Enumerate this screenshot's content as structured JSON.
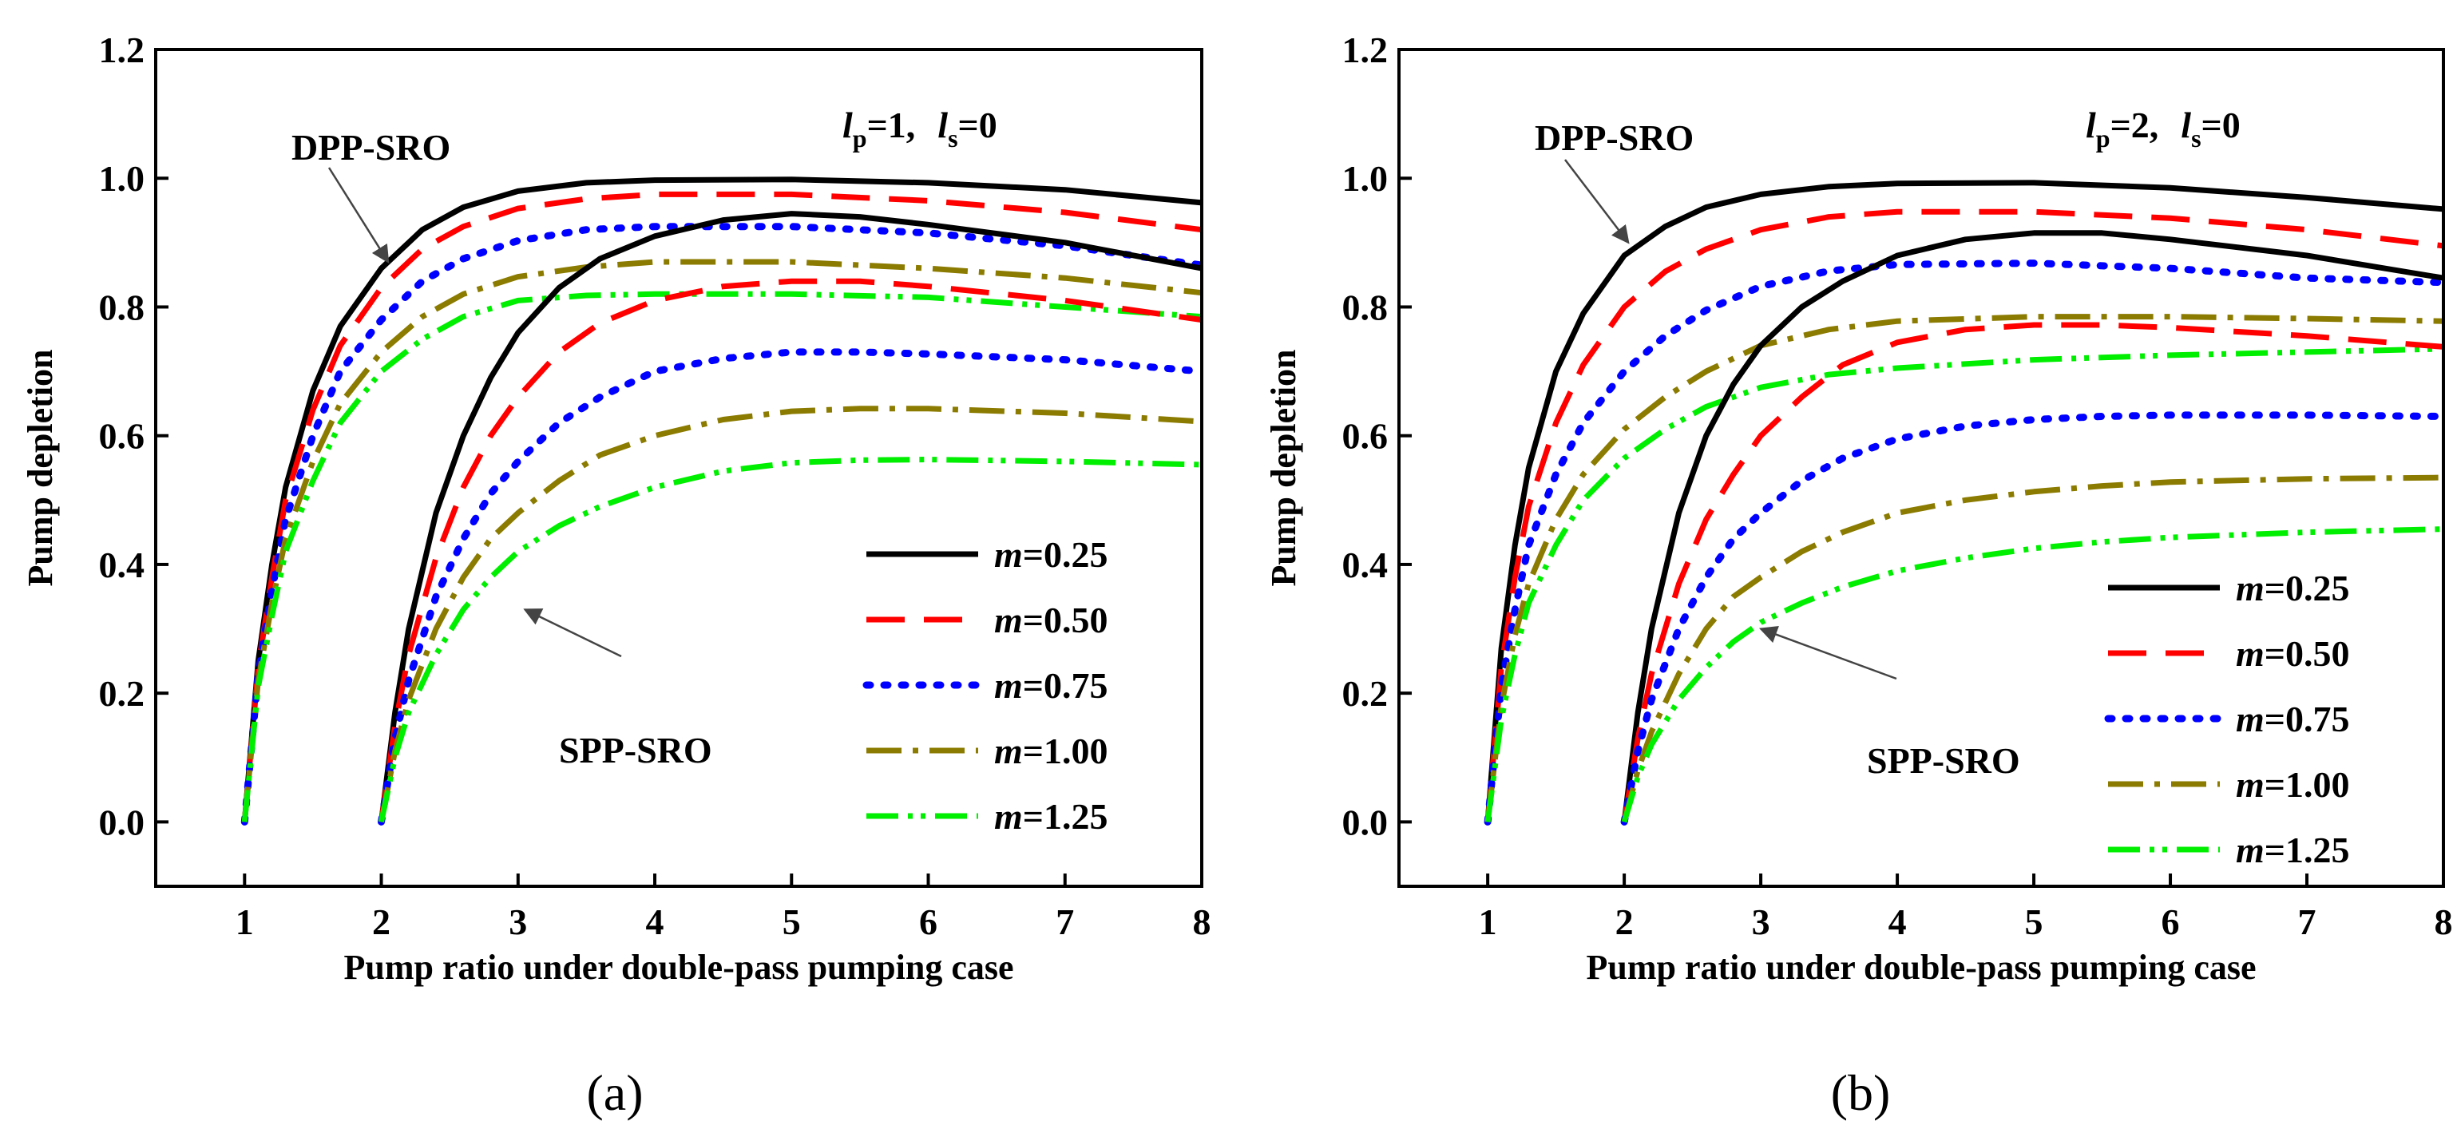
{
  "chart_data": [
    {
      "type": "line",
      "caption": "(a)",
      "xlabel": "Pump ratio under double-pass pumping case",
      "ylabel": "Pump depletion",
      "xlim": [
        0.35,
        8
      ],
      "ylim": [
        -0.1,
        1.2
      ],
      "xticks": [
        "1",
        "2",
        "3",
        "4",
        "5",
        "6",
        "7",
        "8"
      ],
      "yticks": [
        "0.0",
        "0.2",
        "0.4",
        "0.6",
        "0.8",
        "1.0",
        "1.2"
      ],
      "params": {
        "lp_letter": "l",
        "lp_sub": "p",
        "lp_val": "=1,",
        "ls_letter": "l",
        "ls_sub": "s",
        "ls_val": "=0"
      },
      "annotations": [
        {
          "text": "DPP-SRO",
          "points_to": [
            2.05,
            0.87
          ]
        },
        {
          "text": "SPP-SRO",
          "points_to": [
            3.05,
            0.33
          ]
        }
      ],
      "legend_labels": [
        {
          "var": "m",
          "val": "=0.25"
        },
        {
          "var": "m",
          "val": "=0.50"
        },
        {
          "var": "m",
          "val": "=0.75"
        },
        {
          "var": "m",
          "val": "=1.00"
        },
        {
          "var": "m",
          "val": "=1.25"
        }
      ],
      "series": [
        {
          "name": "DPP m=0.25",
          "group": "DPP",
          "style": 0,
          "color": "#000000",
          "x": [
            1,
            1.1,
            1.2,
            1.3,
            1.5,
            1.7,
            2,
            2.3,
            2.6,
            3,
            3.5,
            4,
            5,
            6,
            7,
            8
          ],
          "y": [
            0,
            0.25,
            0.4,
            0.52,
            0.67,
            0.77,
            0.86,
            0.92,
            0.955,
            0.98,
            0.993,
            0.997,
            0.998,
            0.993,
            0.982,
            0.962
          ]
        },
        {
          "name": "DPP m=0.50",
          "group": "DPP",
          "style": 1,
          "color": "#ff0000",
          "x": [
            1,
            1.1,
            1.2,
            1.3,
            1.5,
            1.7,
            2,
            2.3,
            2.6,
            3,
            3.5,
            4,
            5,
            6,
            7,
            8
          ],
          "y": [
            0,
            0.24,
            0.38,
            0.5,
            0.64,
            0.74,
            0.83,
            0.89,
            0.925,
            0.953,
            0.968,
            0.975,
            0.975,
            0.965,
            0.947,
            0.92
          ]
        },
        {
          "name": "DPP m=0.75",
          "group": "DPP",
          "style": 2,
          "color": "#0000ff",
          "x": [
            1,
            1.1,
            1.2,
            1.3,
            1.5,
            1.7,
            2,
            2.3,
            2.6,
            3,
            3.5,
            4,
            5,
            6,
            7,
            8
          ],
          "y": [
            0,
            0.23,
            0.36,
            0.47,
            0.6,
            0.7,
            0.78,
            0.84,
            0.875,
            0.903,
            0.92,
            0.925,
            0.925,
            0.915,
            0.895,
            0.865
          ]
        },
        {
          "name": "DPP m=1.00",
          "group": "DPP",
          "style": 3,
          "color": "#8b7b00",
          "x": [
            1,
            1.1,
            1.2,
            1.3,
            1.5,
            1.7,
            2,
            2.3,
            2.6,
            3,
            3.5,
            4,
            5,
            6,
            7,
            8
          ],
          "y": [
            0,
            0.22,
            0.34,
            0.44,
            0.56,
            0.65,
            0.73,
            0.785,
            0.82,
            0.847,
            0.862,
            0.87,
            0.87,
            0.86,
            0.845,
            0.822
          ]
        },
        {
          "name": "DPP m=1.25",
          "group": "DPP",
          "style": 4,
          "color": "#00ee00",
          "x": [
            1,
            1.1,
            1.2,
            1.3,
            1.5,
            1.7,
            2,
            2.3,
            2.6,
            3,
            3.5,
            4,
            5,
            6,
            7,
            8
          ],
          "y": [
            0,
            0.21,
            0.32,
            0.42,
            0.53,
            0.62,
            0.7,
            0.75,
            0.785,
            0.81,
            0.818,
            0.82,
            0.82,
            0.815,
            0.8,
            0.785
          ]
        },
        {
          "name": "SPP m=0.25",
          "group": "SPP",
          "style": 0,
          "color": "#000000",
          "x": [
            2,
            2.1,
            2.2,
            2.4,
            2.6,
            2.8,
            3,
            3.3,
            3.6,
            4,
            4.5,
            5,
            5.5,
            6,
            7,
            8
          ],
          "y": [
            0,
            0.17,
            0.3,
            0.48,
            0.6,
            0.69,
            0.76,
            0.83,
            0.875,
            0.91,
            0.935,
            0.945,
            0.94,
            0.928,
            0.9,
            0.86
          ]
        },
        {
          "name": "SPP m=0.50",
          "group": "SPP",
          "style": 1,
          "color": "#ff0000",
          "x": [
            2,
            2.1,
            2.2,
            2.4,
            2.6,
            2.8,
            3,
            3.3,
            3.6,
            4,
            4.5,
            5,
            5.5,
            6,
            7,
            8
          ],
          "y": [
            0,
            0.15,
            0.26,
            0.41,
            0.52,
            0.6,
            0.66,
            0.73,
            0.775,
            0.81,
            0.832,
            0.84,
            0.84,
            0.832,
            0.81,
            0.78
          ]
        },
        {
          "name": "SPP m=0.75",
          "group": "SPP",
          "style": 2,
          "color": "#0000ff",
          "x": [
            2,
            2.1,
            2.2,
            2.4,
            2.6,
            2.8,
            3,
            3.3,
            3.6,
            4,
            4.5,
            5,
            5.5,
            6,
            7,
            8
          ],
          "y": [
            0,
            0.13,
            0.22,
            0.35,
            0.44,
            0.51,
            0.56,
            0.62,
            0.66,
            0.7,
            0.72,
            0.73,
            0.73,
            0.727,
            0.718,
            0.7
          ]
        },
        {
          "name": "SPP m=1.00",
          "group": "SPP",
          "style": 3,
          "color": "#8b7b00",
          "x": [
            2,
            2.1,
            2.2,
            2.4,
            2.6,
            2.8,
            3,
            3.3,
            3.6,
            4,
            4.5,
            5,
            5.5,
            6,
            7,
            8
          ],
          "y": [
            0,
            0.11,
            0.19,
            0.3,
            0.38,
            0.44,
            0.48,
            0.53,
            0.57,
            0.6,
            0.625,
            0.638,
            0.642,
            0.642,
            0.635,
            0.622
          ]
        },
        {
          "name": "SPP m=1.25",
          "group": "SPP",
          "style": 4,
          "color": "#00ee00",
          "x": [
            2,
            2.1,
            2.2,
            2.4,
            2.6,
            2.8,
            3,
            3.3,
            3.6,
            4,
            4.5,
            5,
            5.5,
            6,
            7,
            8
          ],
          "y": [
            0,
            0.1,
            0.17,
            0.26,
            0.33,
            0.38,
            0.42,
            0.46,
            0.49,
            0.52,
            0.545,
            0.558,
            0.562,
            0.563,
            0.56,
            0.555
          ]
        }
      ]
    },
    {
      "type": "line",
      "caption": "(b)",
      "xlabel": "Pump ratio under double-pass pumping case",
      "ylabel": "Pump depletion",
      "xlim": [
        0.35,
        8
      ],
      "ylim": [
        -0.1,
        1.2
      ],
      "xticks": [
        "1",
        "2",
        "3",
        "4",
        "5",
        "6",
        "7",
        "8"
      ],
      "yticks": [
        "0.0",
        "0.2",
        "0.4",
        "0.6",
        "0.8",
        "1.0",
        "1.2"
      ],
      "params": {
        "lp_letter": "l",
        "lp_sub": "p",
        "lp_val": "=2,",
        "ls_letter": "l",
        "ls_sub": "s",
        "ls_val": "=0"
      },
      "annotations": [
        {
          "text": "DPP-SRO",
          "points_to": [
            2.03,
            0.9
          ]
        },
        {
          "text": "SPP-SRO",
          "points_to": [
            3.0,
            0.3
          ]
        }
      ],
      "legend_labels": [
        {
          "var": "m",
          "val": "=0.25"
        },
        {
          "var": "m",
          "val": "=0.50"
        },
        {
          "var": "m",
          "val": "=0.75"
        },
        {
          "var": "m",
          "val": "=1.00"
        },
        {
          "var": "m",
          "val": "=1.25"
        }
      ],
      "series": [
        {
          "name": "DPP m=0.25",
          "group": "DPP",
          "style": 0,
          "color": "#000000",
          "x": [
            1,
            1.1,
            1.2,
            1.3,
            1.5,
            1.7,
            2,
            2.3,
            2.6,
            3,
            3.5,
            4,
            5,
            6,
            7,
            8
          ],
          "y": [
            0,
            0.27,
            0.43,
            0.55,
            0.7,
            0.79,
            0.88,
            0.925,
            0.955,
            0.975,
            0.987,
            0.992,
            0.993,
            0.985,
            0.97,
            0.952
          ]
        },
        {
          "name": "DPP m=0.50",
          "group": "DPP",
          "style": 1,
          "color": "#ff0000",
          "x": [
            1,
            1.1,
            1.2,
            1.3,
            1.5,
            1.7,
            2,
            2.3,
            2.6,
            3,
            3.5,
            4,
            5,
            6,
            7,
            8
          ],
          "y": [
            0,
            0.24,
            0.38,
            0.49,
            0.62,
            0.71,
            0.8,
            0.855,
            0.89,
            0.92,
            0.94,
            0.948,
            0.948,
            0.938,
            0.92,
            0.895
          ]
        },
        {
          "name": "DPP m=0.75",
          "group": "DPP",
          "style": 2,
          "color": "#0000ff",
          "x": [
            1,
            1.1,
            1.2,
            1.3,
            1.5,
            1.7,
            2,
            2.3,
            2.6,
            3,
            3.5,
            4,
            5,
            6,
            7,
            8
          ],
          "y": [
            0,
            0.21,
            0.33,
            0.43,
            0.54,
            0.62,
            0.7,
            0.755,
            0.795,
            0.832,
            0.856,
            0.866,
            0.868,
            0.86,
            0.845,
            0.838
          ]
        },
        {
          "name": "DPP m=1.00",
          "group": "DPP",
          "style": 3,
          "color": "#8b7b00",
          "x": [
            1,
            1.1,
            1.2,
            1.3,
            1.5,
            1.7,
            2,
            2.3,
            2.6,
            3,
            3.5,
            4,
            5,
            6,
            7,
            8
          ],
          "y": [
            0,
            0.18,
            0.29,
            0.37,
            0.47,
            0.54,
            0.61,
            0.66,
            0.7,
            0.74,
            0.765,
            0.778,
            0.785,
            0.785,
            0.782,
            0.778
          ]
        },
        {
          "name": "DPP m=1.25",
          "group": "DPP",
          "style": 4,
          "color": "#00ee00",
          "x": [
            1,
            1.1,
            1.2,
            1.3,
            1.5,
            1.7,
            2,
            2.3,
            2.6,
            3,
            3.5,
            4,
            5,
            6,
            7,
            8
          ],
          "y": [
            0,
            0.16,
            0.26,
            0.34,
            0.43,
            0.5,
            0.565,
            0.61,
            0.645,
            0.675,
            0.695,
            0.705,
            0.718,
            0.725,
            0.73,
            0.735
          ]
        },
        {
          "name": "SPP m=0.25",
          "group": "SPP",
          "style": 0,
          "color": "#000000",
          "x": [
            2,
            2.1,
            2.2,
            2.4,
            2.6,
            2.8,
            3,
            3.3,
            3.6,
            4,
            4.5,
            5,
            5.5,
            6,
            7,
            8
          ],
          "y": [
            0,
            0.17,
            0.3,
            0.48,
            0.6,
            0.68,
            0.74,
            0.8,
            0.84,
            0.88,
            0.905,
            0.915,
            0.915,
            0.905,
            0.88,
            0.845
          ]
        },
        {
          "name": "SPP m=0.50",
          "group": "SPP",
          "style": 1,
          "color": "#ff0000",
          "x": [
            2,
            2.1,
            2.2,
            2.4,
            2.6,
            2.8,
            3,
            3.3,
            3.6,
            4,
            4.5,
            5,
            5.5,
            6,
            7,
            8
          ],
          "y": [
            0,
            0.13,
            0.23,
            0.37,
            0.47,
            0.54,
            0.6,
            0.66,
            0.71,
            0.745,
            0.765,
            0.772,
            0.772,
            0.768,
            0.755,
            0.738
          ]
        },
        {
          "name": "SPP m=0.75",
          "group": "SPP",
          "style": 2,
          "color": "#0000ff",
          "x": [
            2,
            2.1,
            2.2,
            2.4,
            2.6,
            2.8,
            3,
            3.3,
            3.6,
            4,
            4.5,
            5,
            5.5,
            6,
            7,
            8
          ],
          "y": [
            0,
            0.11,
            0.19,
            0.3,
            0.38,
            0.44,
            0.48,
            0.53,
            0.565,
            0.595,
            0.615,
            0.625,
            0.63,
            0.632,
            0.632,
            0.63
          ]
        },
        {
          "name": "SPP m=1.00",
          "group": "SPP",
          "style": 3,
          "color": "#8b7b00",
          "x": [
            2,
            2.1,
            2.2,
            2.4,
            2.6,
            2.8,
            3,
            3.3,
            3.6,
            4,
            4.5,
            5,
            5.5,
            6,
            7,
            8
          ],
          "y": [
            0,
            0.08,
            0.14,
            0.23,
            0.3,
            0.35,
            0.38,
            0.42,
            0.45,
            0.48,
            0.5,
            0.513,
            0.522,
            0.528,
            0.533,
            0.535
          ]
        },
        {
          "name": "SPP m=1.25",
          "group": "SPP",
          "style": 4,
          "color": "#00ee00",
          "x": [
            2,
            2.1,
            2.2,
            2.4,
            2.6,
            2.8,
            3,
            3.3,
            3.6,
            4,
            4.5,
            5,
            5.5,
            6,
            7,
            8
          ],
          "y": [
            0,
            0.07,
            0.12,
            0.19,
            0.24,
            0.28,
            0.31,
            0.34,
            0.365,
            0.39,
            0.41,
            0.425,
            0.435,
            0.442,
            0.45,
            0.455
          ]
        }
      ]
    }
  ]
}
